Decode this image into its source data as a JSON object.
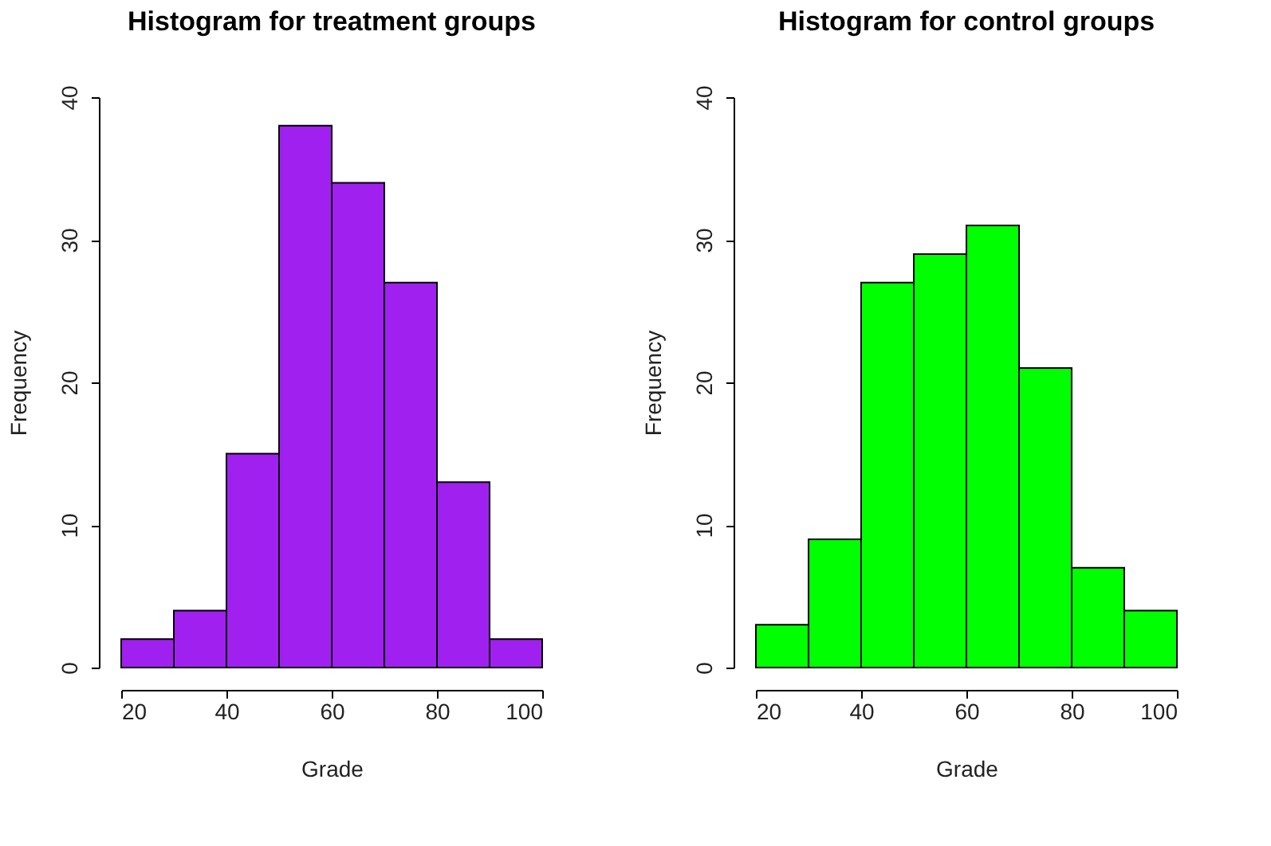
{
  "chart_data": [
    {
      "type": "histogram",
      "title": "Histogram for treatment groups",
      "xlabel": "Grade",
      "ylabel": "Frequency",
      "bins": [
        20,
        30,
        40,
        50,
        60,
        70,
        80,
        90,
        100
      ],
      "values": [
        2,
        4,
        15,
        38,
        34,
        27,
        13,
        2
      ],
      "color": "#a020f0",
      "xlim": [
        20,
        100
      ],
      "xticks": [
        20,
        40,
        60,
        80,
        100
      ],
      "ylim": [
        0,
        40
      ],
      "yticks": [
        0,
        10,
        20,
        30,
        40
      ]
    },
    {
      "type": "histogram",
      "title": "Histogram for control groups",
      "xlabel": "Grade",
      "ylabel": "Frequency",
      "bins": [
        20,
        30,
        40,
        50,
        60,
        70,
        80,
        90,
        100
      ],
      "values": [
        3,
        9,
        27,
        29,
        31,
        21,
        7,
        4
      ],
      "color": "#00ff00",
      "xlim": [
        20,
        100
      ],
      "xticks": [
        20,
        40,
        60,
        80,
        100
      ],
      "ylim": [
        0,
        40
      ],
      "yticks": [
        0,
        10,
        20,
        30,
        40
      ]
    }
  ]
}
